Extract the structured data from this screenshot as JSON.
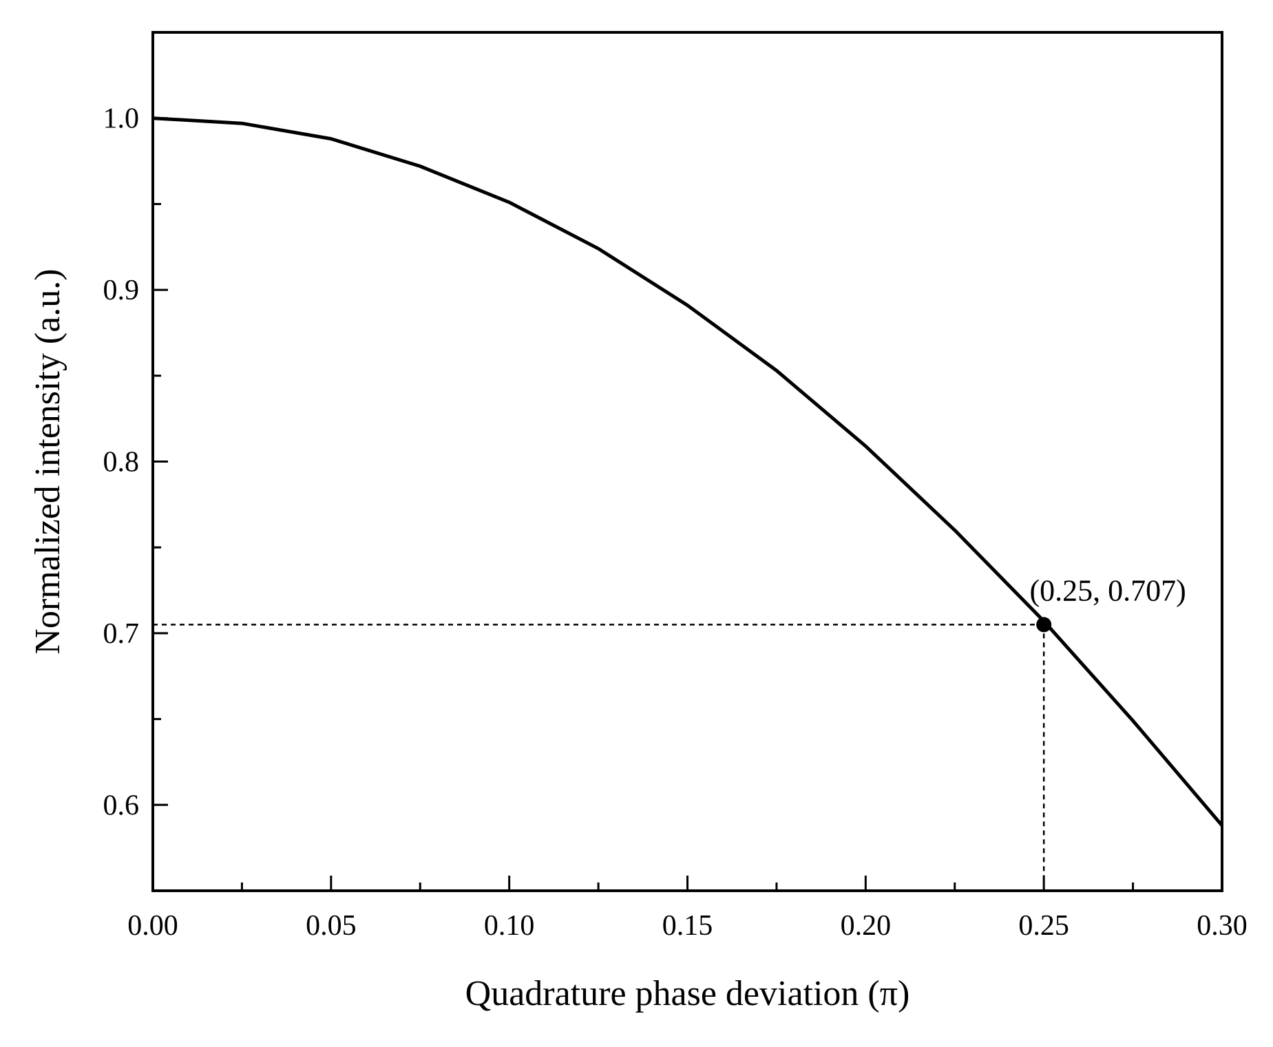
{
  "chart_data": {
    "type": "line",
    "xlabel": "Quadrature phase deviation (π)",
    "ylabel": "Normalized intensity (a.u.)",
    "xlim": [
      0.0,
      0.3
    ],
    "ylim": [
      0.55,
      1.05
    ],
    "x_ticks": [
      {
        "value": 0.0,
        "label": "0.00"
      },
      {
        "value": 0.05,
        "label": "0.05"
      },
      {
        "value": 0.1,
        "label": "0.10"
      },
      {
        "value": 0.15,
        "label": "0.15"
      },
      {
        "value": 0.2,
        "label": "0.20"
      },
      {
        "value": 0.25,
        "label": "0.25"
      },
      {
        "value": 0.3,
        "label": "0.30"
      }
    ],
    "x_minor_ticks": [
      0.025,
      0.075,
      0.125,
      0.175,
      0.225,
      0.275
    ],
    "y_ticks": [
      {
        "value": 0.6,
        "label": "0.6"
      },
      {
        "value": 0.7,
        "label": "0.7"
      },
      {
        "value": 0.8,
        "label": "0.8"
      },
      {
        "value": 0.9,
        "label": "0.9"
      },
      {
        "value": 1.0,
        "label": "1.0"
      }
    ],
    "y_minor_ticks": [
      0.65,
      0.75,
      0.85,
      0.95
    ],
    "grid": false,
    "series": [
      {
        "color": "#000000",
        "x": [
          0.0,
          0.025,
          0.05,
          0.075,
          0.1,
          0.125,
          0.15,
          0.175,
          0.2,
          0.225,
          0.25,
          0.275,
          0.3
        ],
        "y": [
          1.0,
          0.997,
          0.988,
          0.972,
          0.951,
          0.924,
          0.891,
          0.853,
          0.809,
          0.76,
          0.707,
          0.649,
          0.588
        ]
      }
    ],
    "annotations": [
      {
        "text": "(0.25, 0.707)",
        "x": 0.25,
        "y": 0.705,
        "marker": "filled-circle",
        "guide_lines": "dashed"
      }
    ]
  }
}
